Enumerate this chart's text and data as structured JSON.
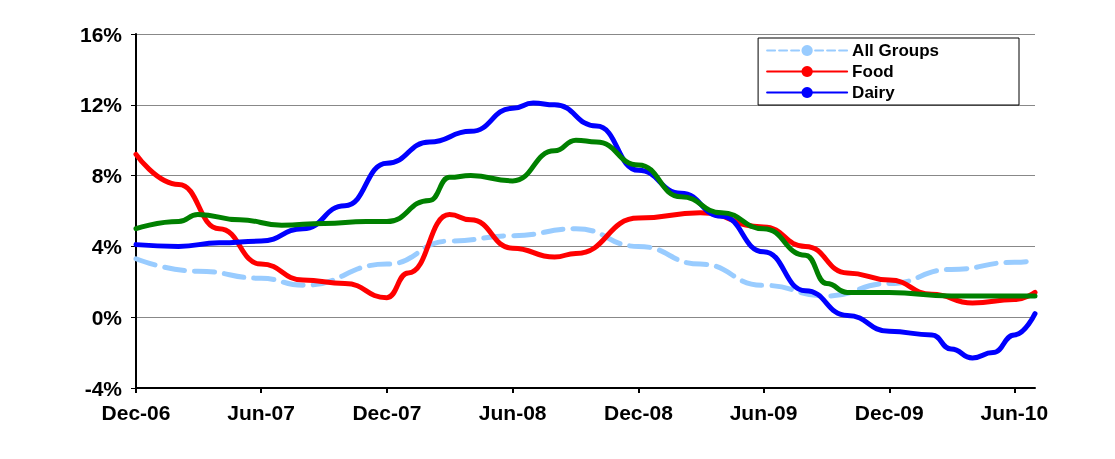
{
  "chart_data": {
    "type": "line",
    "ylim": [
      -4,
      16
    ],
    "yticks": [
      {
        "value": -4,
        "label": "-4%"
      },
      {
        "value": 0,
        "label": "0%"
      },
      {
        "value": 4,
        "label": "4%"
      },
      {
        "value": 8,
        "label": "8%"
      },
      {
        "value": 12,
        "label": "12%"
      },
      {
        "value": 16,
        "label": "16%"
      }
    ],
    "xlim": [
      "2006-12",
      "2010-07"
    ],
    "xticks": [
      {
        "value": "2006-12",
        "label": "Dec-06"
      },
      {
        "value": "2007-06",
        "label": "Jun-07"
      },
      {
        "value": "2007-12",
        "label": "Dec-07"
      },
      {
        "value": "2008-06",
        "label": "Jun-08"
      },
      {
        "value": "2008-12",
        "label": "Dec-08"
      },
      {
        "value": "2009-06",
        "label": "Jun-09"
      },
      {
        "value": "2009-12",
        "label": "Dec-09"
      },
      {
        "value": "2010-06",
        "label": "Jun-10"
      }
    ],
    "grid": "y",
    "legend": "top right",
    "marker": "none",
    "series": [
      {
        "name": "All Groups",
        "color": "#99ccff",
        "line_style": "dashed",
        "x": [
          "2006-12",
          "2007-03",
          "2007-06",
          "2007-08",
          "2007-12",
          "2008-03",
          "2008-06",
          "2008-09",
          "2008-12",
          "2009-03",
          "2009-06",
          "2009-09",
          "2009-12",
          "2010-03",
          "2010-06",
          "2010-07"
        ],
        "values": [
          3.3,
          2.6,
          2.2,
          1.8,
          3.0,
          4.3,
          4.6,
          5.0,
          4.0,
          3.0,
          1.8,
          1.2,
          1.9,
          2.7,
          3.1,
          3.2
        ]
      },
      {
        "name": "Food",
        "color": "#ff0000",
        "line_style": "solid",
        "x": [
          "2006-12",
          "2007-02",
          "2007-04",
          "2007-06",
          "2007-08",
          "2007-10",
          "2007-12",
          "2008-01",
          "2008-03",
          "2008-04",
          "2008-06",
          "2008-08",
          "2008-09",
          "2008-12",
          "2009-03",
          "2009-06",
          "2009-08",
          "2009-10",
          "2009-12",
          "2010-02",
          "2010-04",
          "2010-06",
          "2010-07"
        ],
        "values": [
          9.2,
          7.5,
          5.0,
          3.0,
          2.1,
          1.9,
          1.1,
          2.5,
          5.8,
          5.5,
          3.9,
          3.4,
          3.6,
          5.6,
          5.9,
          5.1,
          4.0,
          2.5,
          2.1,
          1.3,
          0.8,
          1.0,
          1.4
        ]
      },
      {
        "name": "Dairy",
        "color": "#0000ff",
        "line_style": "solid",
        "x": [
          "2006-12",
          "2007-02",
          "2007-04",
          "2007-06",
          "2007-08",
          "2007-10",
          "2007-12",
          "2008-02",
          "2008-04",
          "2008-06",
          "2008-07",
          "2008-08",
          "2008-10",
          "2008-12",
          "2009-02",
          "2009-04",
          "2009-06",
          "2009-08",
          "2009-10",
          "2009-12",
          "2010-02",
          "2010-03",
          "2010-04",
          "2010-05",
          "2010-06",
          "2010-07"
        ],
        "values": [
          4.1,
          4.0,
          4.2,
          4.3,
          5.0,
          6.3,
          8.7,
          9.9,
          10.5,
          11.8,
          12.1,
          12.0,
          10.8,
          8.3,
          7.0,
          5.7,
          3.7,
          1.5,
          0.1,
          -0.8,
          -1.0,
          -1.8,
          -2.3,
          -2.0,
          -1.0,
          0.2
        ]
      },
      {
        "color": "#008000",
        "line_style": "solid",
        "x": [
          "2006-12",
          "2007-02",
          "2007-03",
          "2007-05",
          "2007-07",
          "2007-09",
          "2007-11",
          "2007-12",
          "2008-02",
          "2008-03",
          "2008-04",
          "2008-06",
          "2008-08",
          "2008-09",
          "2008-10",
          "2008-12",
          "2009-02",
          "2009-04",
          "2009-06",
          "2009-08",
          "2009-09",
          "2009-10",
          "2009-12",
          "2010-03",
          "2010-07"
        ],
        "values": [
          5.0,
          5.4,
          5.8,
          5.5,
          5.2,
          5.3,
          5.4,
          5.4,
          6.6,
          7.9,
          8.0,
          7.7,
          9.4,
          10.0,
          9.9,
          8.6,
          6.8,
          5.9,
          5.0,
          3.5,
          1.9,
          1.4,
          1.4,
          1.2,
          1.2
        ]
      }
    ]
  }
}
